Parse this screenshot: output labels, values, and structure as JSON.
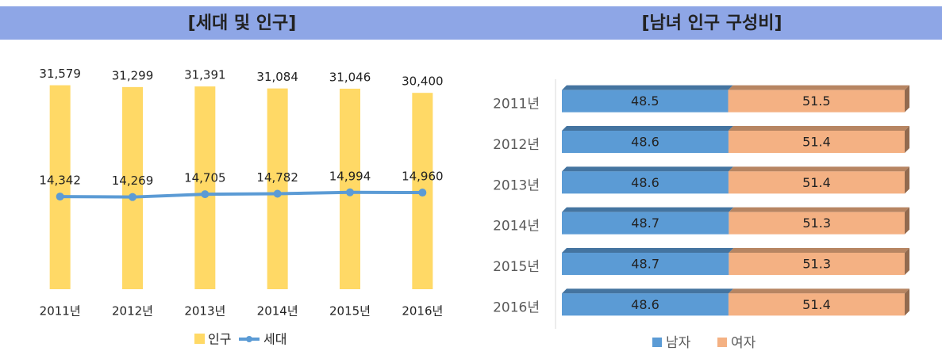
{
  "chart_data": [
    {
      "type": "bar",
      "title": "[세대 및 인구]",
      "categories": [
        "2011년",
        "2012년",
        "2013년",
        "2014년",
        "2015년",
        "2016년"
      ],
      "ylim": [
        0,
        33000
      ],
      "series": [
        {
          "name": "인구",
          "kind": "bar",
          "color": "#ffd966",
          "values": [
            31579,
            31299,
            31391,
            31084,
            31046,
            30400
          ],
          "value_labels": [
            "31,579",
            "31,299",
            "31,391",
            "31,084",
            "31,046",
            "30,400"
          ]
        },
        {
          "name": "세대",
          "kind": "line",
          "color": "#5b9bd5",
          "values": [
            14342,
            14269,
            14705,
            14782,
            14994,
            14960
          ],
          "value_labels": [
            "14,342",
            "14,269",
            "14,705",
            "14,782",
            "14,994",
            "14,960"
          ]
        }
      ]
    },
    {
      "type": "barh",
      "title": "[남녀 인구 구성비]",
      "categories": [
        "2011년",
        "2012년",
        "2013년",
        "2014년",
        "2015년",
        "2016년"
      ],
      "xlim": [
        0,
        100
      ],
      "series": [
        {
          "name": "남자",
          "color": "#5b9bd5",
          "values": [
            48.5,
            48.6,
            48.6,
            48.7,
            48.7,
            48.6
          ]
        },
        {
          "name": "여자",
          "color": "#f4b183",
          "values": [
            51.5,
            51.4,
            51.4,
            51.3,
            51.3,
            51.4
          ]
        }
      ]
    }
  ]
}
